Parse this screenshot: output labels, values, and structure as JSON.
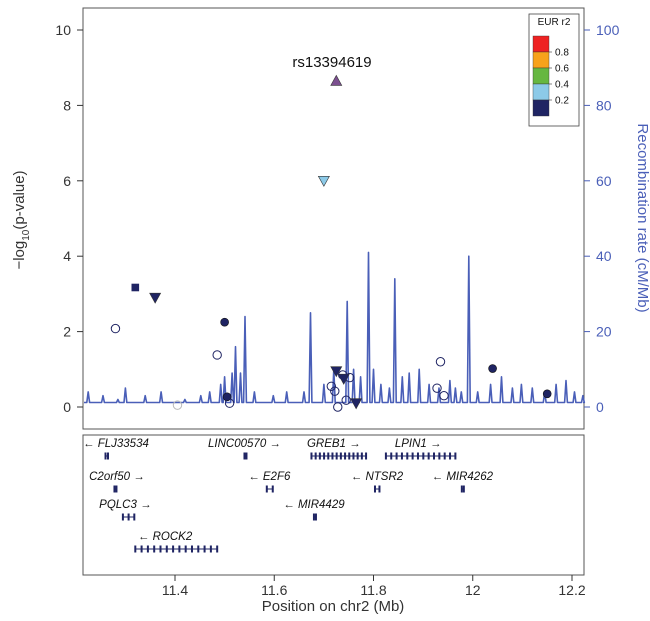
{
  "chart_data": {
    "type": "scatter",
    "title": "",
    "xlabel": "Position on chr2 (Mb)",
    "ylabel": "-log10(p-value)",
    "ylabel_prefix": "−log",
    "ylabel_sub": "10",
    "ylabel_suffix": "(p-value)",
    "y2label": "Recombination rate (cM/Mb)",
    "xlim": [
      11.22,
      12.23
    ],
    "ylim": [
      0,
      10.4
    ],
    "y2lim": [
      0,
      104
    ],
    "xticks": [
      "11.4",
      "11.6",
      "11.8",
      "12",
      "12.2"
    ],
    "yticks": [
      "0",
      "2",
      "4",
      "6",
      "8",
      "10"
    ],
    "y2ticks": [
      "0",
      "20",
      "40",
      "60",
      "80",
      "100"
    ],
    "grid": false,
    "lead_snp": "rs13394619",
    "legend": {
      "title": "EUR r2",
      "position": "top-right",
      "labels": [
        "0.8",
        "0.6",
        "0.4",
        "0.2"
      ],
      "colors": [
        "#ee2222",
        "#f7a21b",
        "#66b741",
        "#8ccae8",
        "#1f2463"
      ]
    },
    "points": [
      {
        "x": 11.725,
        "y": 8.65,
        "shape": "triangle-up",
        "color": "#7b4f8f"
      },
      {
        "x": 11.7,
        "y": 6.0,
        "shape": "triangle-down",
        "color": "#8ccae8"
      },
      {
        "x": 11.32,
        "y": 3.17,
        "shape": "square",
        "color": "#1f2463"
      },
      {
        "x": 11.36,
        "y": 2.9,
        "shape": "triangle-down",
        "color": "#1f2463"
      },
      {
        "x": 11.28,
        "y": 2.08,
        "shape": "circle-open",
        "color": "#1f2463"
      },
      {
        "x": 11.5,
        "y": 2.25,
        "shape": "circle",
        "color": "#1f2463"
      },
      {
        "x": 11.485,
        "y": 1.38,
        "shape": "circle-open",
        "color": "#1f2463"
      },
      {
        "x": 11.505,
        "y": 0.27,
        "shape": "circle",
        "color": "#1f2463"
      },
      {
        "x": 11.51,
        "y": 0.1,
        "shape": "circle-open",
        "color": "#1f2463"
      },
      {
        "x": 11.405,
        "y": 0.05,
        "shape": "circle-open",
        "color": "#bbbbbb"
      },
      {
        "x": 11.715,
        "y": 0.55,
        "shape": "circle-open",
        "color": "#1f2463"
      },
      {
        "x": 11.725,
        "y": 0.95,
        "shape": "triangle-down",
        "color": "#1f2463"
      },
      {
        "x": 11.74,
        "y": 0.75,
        "shape": "triangle-down",
        "color": "#1f2463"
      },
      {
        "x": 11.738,
        "y": 0.85,
        "shape": "circle-open",
        "color": "#1f2463"
      },
      {
        "x": 11.752,
        "y": 0.78,
        "shape": "circle-open",
        "color": "#1f2463"
      },
      {
        "x": 11.722,
        "y": 0.42,
        "shape": "circle-open",
        "color": "#1f2463"
      },
      {
        "x": 11.728,
        "y": 0.0,
        "shape": "circle-open",
        "color": "#1f2463"
      },
      {
        "x": 11.745,
        "y": 0.18,
        "shape": "circle-open",
        "color": "#1f2463"
      },
      {
        "x": 11.765,
        "y": 0.1,
        "shape": "triangle-down",
        "color": "#1f2463"
      },
      {
        "x": 11.935,
        "y": 1.2,
        "shape": "circle-open",
        "color": "#1f2463"
      },
      {
        "x": 11.928,
        "y": 0.5,
        "shape": "circle-open",
        "color": "#1f2463"
      },
      {
        "x": 11.942,
        "y": 0.3,
        "shape": "circle-open",
        "color": "#1f2463"
      },
      {
        "x": 12.04,
        "y": 1.02,
        "shape": "circle",
        "color": "#1f2463"
      },
      {
        "x": 12.15,
        "y": 0.35,
        "shape": "circle",
        "color": "#1f2463"
      }
    ],
    "recomb_spikes": [
      [
        11.225,
        4
      ],
      [
        11.255,
        3
      ],
      [
        11.285,
        2
      ],
      [
        11.3,
        5
      ],
      [
        11.34,
        3
      ],
      [
        11.372,
        4
      ],
      [
        11.42,
        2
      ],
      [
        11.452,
        3
      ],
      [
        11.47,
        4
      ],
      [
        11.492,
        6
      ],
      [
        11.5,
        8
      ],
      [
        11.515,
        9
      ],
      [
        11.522,
        16
      ],
      [
        11.532,
        9
      ],
      [
        11.541,
        24
      ],
      [
        11.56,
        4
      ],
      [
        11.598,
        3
      ],
      [
        11.625,
        4
      ],
      [
        11.66,
        4
      ],
      [
        11.673,
        25
      ],
      [
        11.7,
        6
      ],
      [
        11.72,
        10
      ],
      [
        11.747,
        28
      ],
      [
        11.76,
        10
      ],
      [
        11.774,
        8
      ],
      [
        11.79,
        41
      ],
      [
        11.8,
        10
      ],
      [
        11.815,
        6
      ],
      [
        11.832,
        5
      ],
      [
        11.843,
        34
      ],
      [
        11.858,
        8
      ],
      [
        11.872,
        9
      ],
      [
        11.892,
        10
      ],
      [
        11.912,
        6
      ],
      [
        11.932,
        5
      ],
      [
        11.954,
        7
      ],
      [
        11.965,
        5
      ],
      [
        11.977,
        4
      ],
      [
        11.992,
        40
      ],
      [
        12.01,
        4
      ],
      [
        12.036,
        6
      ],
      [
        12.058,
        8
      ],
      [
        12.08,
        5
      ],
      [
        12.098,
        6
      ],
      [
        12.12,
        5
      ],
      [
        12.145,
        4
      ],
      [
        12.168,
        6
      ],
      [
        12.188,
        7
      ],
      [
        12.205,
        4
      ],
      [
        12.222,
        3
      ]
    ],
    "genes": [
      {
        "name": "FLJ33534",
        "start": 11.26,
        "end": 11.265,
        "strand": "-",
        "row": 0,
        "label_x": 11.281
      },
      {
        "name": "LINC00570",
        "start": 11.54,
        "end": 11.543,
        "strand": "+",
        "row": 0,
        "label_x": 11.54
      },
      {
        "name": "GREB1",
        "start": 11.675,
        "end": 11.785,
        "strand": "+",
        "row": 0,
        "label_x": 11.72
      },
      {
        "name": "LPIN1",
        "start": 11.825,
        "end": 11.965,
        "strand": "+",
        "row": 0,
        "label_x": 11.89
      },
      {
        "name": "C2orf50",
        "start": 11.278,
        "end": 11.282,
        "strand": "+",
        "row": 1,
        "label_x": 11.283
      },
      {
        "name": "E2F6",
        "start": 11.585,
        "end": 11.597,
        "strand": "-",
        "row": 1,
        "label_x": 11.59
      },
      {
        "name": "NTSR2",
        "start": 11.803,
        "end": 11.812,
        "strand": "-",
        "row": 1,
        "label_x": 11.807
      },
      {
        "name": "MIR4262",
        "start": 11.978,
        "end": 11.979,
        "strand": "-",
        "row": 1,
        "label_x": 11.979
      },
      {
        "name": "PQLC3",
        "start": 11.295,
        "end": 11.318,
        "strand": "+",
        "row": 2,
        "label_x": 11.3
      },
      {
        "name": "MIR4429",
        "start": 11.68,
        "end": 11.681,
        "strand": "-",
        "row": 2,
        "label_x": 11.68
      },
      {
        "name": "ROCK2",
        "start": 11.32,
        "end": 11.485,
        "strand": "-",
        "row": 3,
        "label_x": 11.38
      }
    ]
  }
}
